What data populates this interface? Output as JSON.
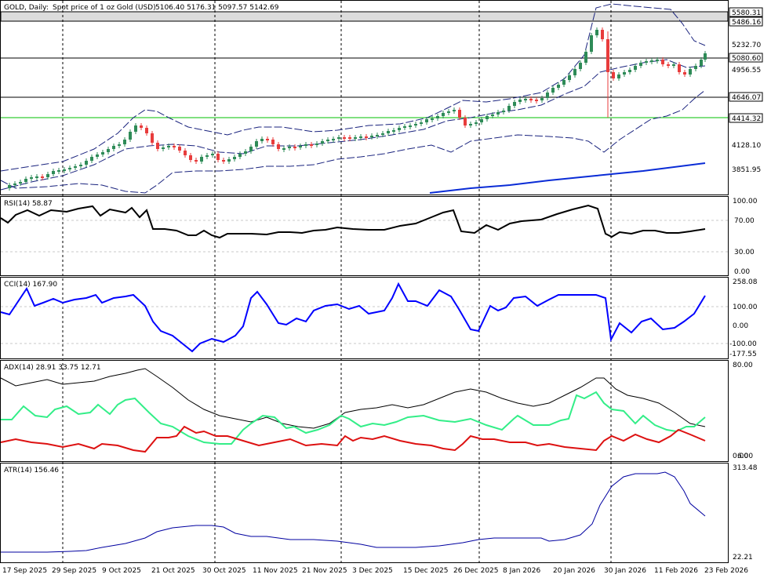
{
  "header": {
    "symbol": "GOLD, Daily:",
    "description": "Spot price of 1 oz Gold (USD)",
    "ohlc": "5106.40 5176.31 5097.57 5142.69"
  },
  "price_pane": {
    "levels": [
      {
        "label": "5580.31",
        "boxed": true
      },
      {
        "label": "5486.16",
        "boxed": true
      },
      {
        "label": "5232.70",
        "boxed": false
      },
      {
        "label": "5080.60",
        "boxed": true
      },
      {
        "label": "4956.55",
        "boxed": false
      },
      {
        "label": "4646.07",
        "boxed": true
      },
      {
        "label": "4414.32",
        "boxed": true
      },
      {
        "label": "4128.10",
        "boxed": false
      },
      {
        "label": "3851.95",
        "boxed": false
      }
    ],
    "zone_color": "#dcdcdc",
    "support_color": "#00c000"
  },
  "indicators": {
    "rsi": {
      "title": "RSI(14) 58.87",
      "levels": [
        "100.00",
        "70.00",
        "30.00",
        "0.00"
      ],
      "color": "#000000"
    },
    "cci": {
      "title": "CCI(14) 167.90",
      "levels": [
        "258.08",
        "100.00",
        "0.00",
        "-100.00",
        "-177.55"
      ],
      "color": "#0000ff"
    },
    "adx": {
      "title": "ADX(14) 28.91 33.75 12.71",
      "levels": [
        "80.00",
        "0.00"
      ],
      "overlap_label": "6.00",
      "colors": [
        "#000000",
        "#33ee88",
        "#dd1111"
      ]
    },
    "atr": {
      "title": "ATR(14) 156.46",
      "levels": [
        "313.48",
        "22.21"
      ],
      "color": "#0000a0"
    }
  },
  "time_axis": [
    "17 Sep 2025",
    "29 Sep 2025",
    "9 Oct 2025",
    "21 Oct 2025",
    "30 Oct 2025",
    "11 Nov 2025",
    "21 Nov 2025",
    "3 Dec 2025",
    "15 Dec 2025",
    "26 Dec 2025",
    "8 Jan 2026",
    "20 Jan 2026",
    "30 Jan 2026",
    "11 Feb 2026",
    "23 Feb 2026"
  ],
  "colors": {
    "bull": "#2e8b57",
    "bear": "#e83c3c",
    "band": "#1a237e",
    "ma": "#0a2cd6"
  }
}
